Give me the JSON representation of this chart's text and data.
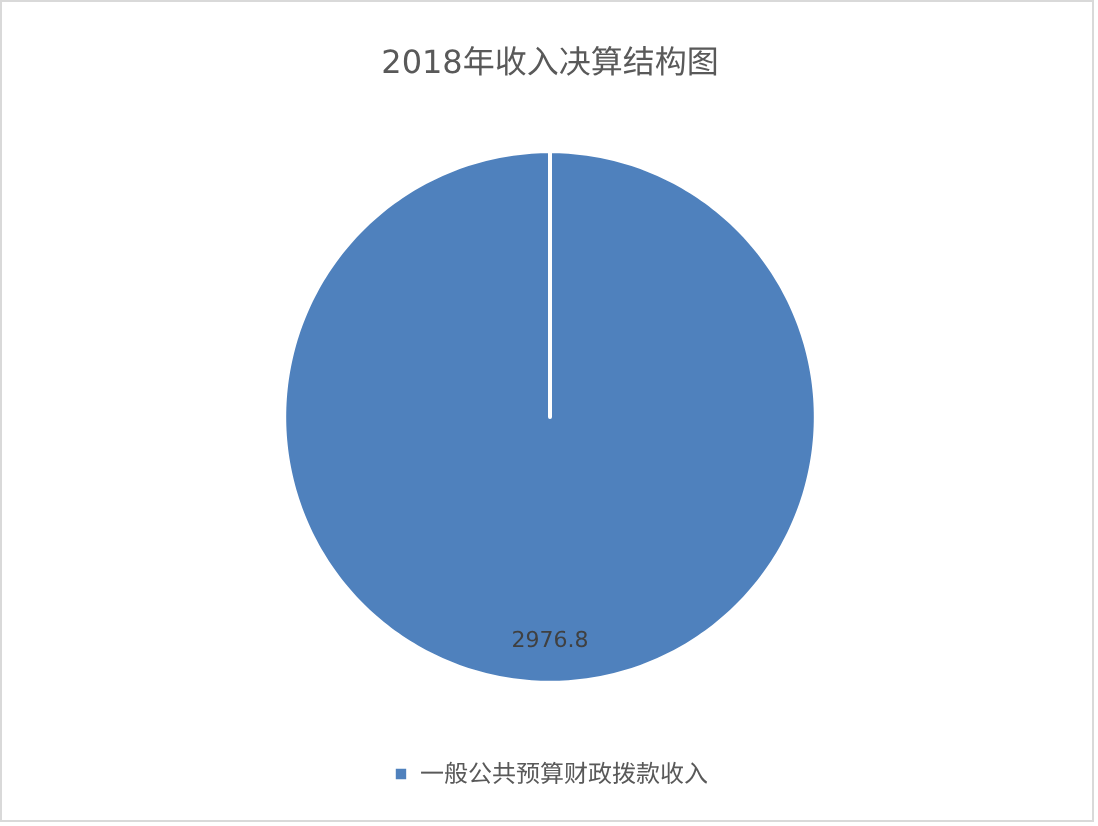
{
  "chart_data": {
    "type": "pie",
    "title": "2018年收入决算结构图",
    "categories": [
      "一般公共预算财政拨款收入"
    ],
    "values": [
      2976.8
    ],
    "colors": [
      "#4f81bd"
    ],
    "data_labels": true,
    "legend": "bottom"
  }
}
